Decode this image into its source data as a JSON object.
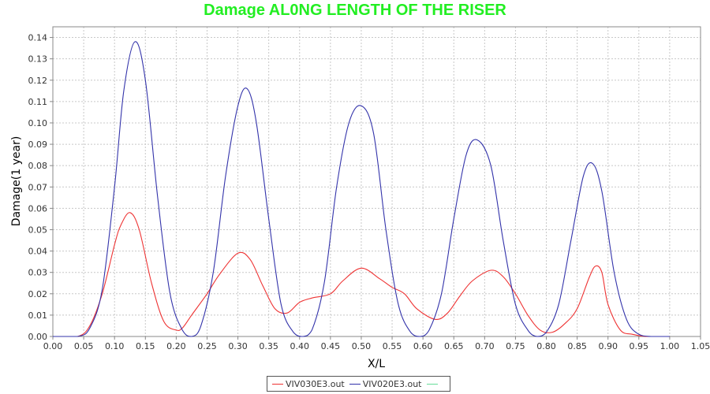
{
  "chart_data": {
    "type": "line",
    "title": "Damage AL0NG LENGTH OF THE RISER",
    "xlabel": "X/L",
    "ylabel": "Damage(1 year)",
    "xlim": [
      0,
      1.05
    ],
    "ylim": [
      0,
      0.145
    ],
    "x_ticks": [
      0.0,
      0.05,
      0.1,
      0.15,
      0.2,
      0.25,
      0.3,
      0.35,
      0.4,
      0.45,
      0.5,
      0.55,
      0.6,
      0.65,
      0.7,
      0.75,
      0.8,
      0.85,
      0.9,
      0.95,
      1.0,
      1.05
    ],
    "y_ticks": [
      0.0,
      0.01,
      0.02,
      0.03,
      0.04,
      0.05,
      0.06,
      0.07,
      0.08,
      0.09,
      0.1,
      0.11,
      0.12,
      0.13,
      0.14
    ],
    "grid": true,
    "legend_position": "bottom",
    "series": [
      {
        "name": "VIV030E3.out",
        "color": "#ee3333",
        "x": [
          0.0,
          0.04,
          0.06,
          0.08,
          0.1,
          0.11,
          0.125,
          0.14,
          0.16,
          0.18,
          0.2,
          0.21,
          0.225,
          0.25,
          0.27,
          0.3,
          0.32,
          0.34,
          0.36,
          0.38,
          0.4,
          0.42,
          0.45,
          0.47,
          0.5,
          0.53,
          0.55,
          0.57,
          0.59,
          0.62,
          0.64,
          0.66,
          0.68,
          0.71,
          0.73,
          0.75,
          0.77,
          0.79,
          0.81,
          0.83,
          0.85,
          0.87,
          0.88,
          0.89,
          0.9,
          0.92,
          0.94,
          0.96,
          0.98,
          1.0
        ],
        "values": [
          0.0,
          0.0,
          0.005,
          0.02,
          0.043,
          0.052,
          0.058,
          0.05,
          0.025,
          0.007,
          0.003,
          0.004,
          0.01,
          0.02,
          0.029,
          0.039,
          0.036,
          0.024,
          0.013,
          0.011,
          0.016,
          0.018,
          0.02,
          0.026,
          0.032,
          0.027,
          0.023,
          0.02,
          0.013,
          0.008,
          0.011,
          0.019,
          0.026,
          0.031,
          0.028,
          0.02,
          0.01,
          0.003,
          0.002,
          0.006,
          0.013,
          0.028,
          0.033,
          0.03,
          0.015,
          0.003,
          0.001,
          0.0,
          0.0,
          0.0
        ]
      },
      {
        "name": "VIV020E3.out",
        "color": "#3333aa",
        "x": [
          0.0,
          0.04,
          0.06,
          0.08,
          0.1,
          0.115,
          0.133,
          0.15,
          0.17,
          0.19,
          0.21,
          0.225,
          0.24,
          0.26,
          0.28,
          0.3,
          0.315,
          0.33,
          0.35,
          0.37,
          0.39,
          0.405,
          0.42,
          0.44,
          0.46,
          0.48,
          0.5,
          0.52,
          0.54,
          0.56,
          0.58,
          0.595,
          0.61,
          0.63,
          0.65,
          0.67,
          0.688,
          0.71,
          0.73,
          0.75,
          0.77,
          0.785,
          0.8,
          0.82,
          0.84,
          0.86,
          0.875,
          0.89,
          0.91,
          0.93,
          0.95,
          0.97,
          1.0
        ],
        "values": [
          0.0,
          0.0,
          0.004,
          0.022,
          0.07,
          0.115,
          0.138,
          0.12,
          0.065,
          0.02,
          0.003,
          0.0,
          0.005,
          0.03,
          0.075,
          0.108,
          0.116,
          0.1,
          0.055,
          0.015,
          0.002,
          0.0,
          0.003,
          0.025,
          0.07,
          0.1,
          0.108,
          0.095,
          0.05,
          0.015,
          0.002,
          0.0,
          0.003,
          0.02,
          0.055,
          0.085,
          0.092,
          0.08,
          0.045,
          0.015,
          0.003,
          0.0,
          0.002,
          0.015,
          0.045,
          0.075,
          0.081,
          0.068,
          0.03,
          0.008,
          0.001,
          0.0,
          0.0
        ]
      }
    ]
  },
  "title_color": "#22ee22",
  "grid_color": "#c8c8c8",
  "legend": {
    "item_1": "VIV030E3.out",
    "item_2": "VIV020E3.out",
    "color_1": "#ee3333",
    "color_2": "#3333aa",
    "color_3": "#66dd99"
  }
}
